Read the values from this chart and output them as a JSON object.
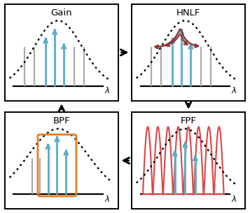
{
  "teal_color": "#5aabcb",
  "gray_color": "#aaaaaa",
  "red_color": "#dd4444",
  "brown_color": "#8b3a3a",
  "orange_color": "#e87d1e",
  "black": "#000000",
  "white": "#ffffff",
  "panel_labels": [
    "Gain",
    "HNLF",
    "BPF",
    "FPF"
  ],
  "lambda_label": "λ",
  "figsize": [
    3.57,
    3.04
  ],
  "dpi": 100
}
